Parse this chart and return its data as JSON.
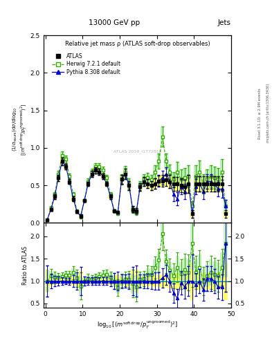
{
  "title_top": "13000 GeV pp",
  "title_right": "Jets",
  "plot_title": "Relative jet mass ρ (ATLAS soft-drop observables)",
  "ylabel_main": "(1/σ_resum) dσ/d log₁₀[(m^{soft drop}/p_T^{ungroomed})^2]",
  "ylabel_ratio": "Ratio to ATLAS",
  "xlabel": "log₁₀[(m^{soft drop}/p_T^{ungroomed})^2]",
  "right_label": "Rivet 3.1.10; ≥ 2.9M events",
  "right_label2": "mcplots.cern.ch [arXiv:1306.3436]",
  "ylim_main": [
    0.0,
    2.5
  ],
  "ylim_ratio": [
    0.4,
    2.3
  ],
  "yticks_ratio": [
    0.5,
    1.0,
    1.5,
    2.0
  ],
  "xlim": [
    -0.5,
    50
  ],
  "watermark": "ATLAS 2019_I1772819",
  "x": [
    0.5,
    1.5,
    2.5,
    3.5,
    4.5,
    5.5,
    6.5,
    7.5,
    8.5,
    9.5,
    10.5,
    11.5,
    12.5,
    13.5,
    14.5,
    15.5,
    16.5,
    17.5,
    18.5,
    19.5,
    20.5,
    21.5,
    22.5,
    23.5,
    24.5,
    25.5,
    26.5,
    27.5,
    28.5,
    29.5,
    30.5,
    31.5,
    32.5,
    33.5,
    34.5,
    35.5,
    36.5,
    37.5,
    38.5,
    39.5,
    40.5,
    41.5,
    42.5,
    43.5,
    44.5,
    45.5,
    46.5,
    47.5,
    48.5
  ],
  "atlas_y": [
    0.04,
    0.18,
    0.35,
    0.6,
    0.82,
    0.75,
    0.55,
    0.32,
    0.15,
    0.09,
    0.3,
    0.52,
    0.65,
    0.7,
    0.68,
    0.62,
    0.52,
    0.35,
    0.16,
    0.14,
    0.58,
    0.65,
    0.5,
    0.18,
    0.16,
    0.48,
    0.55,
    0.52,
    0.5,
    0.52,
    0.56,
    0.56,
    0.57,
    0.55,
    0.52,
    0.52,
    0.5,
    0.48,
    0.52,
    0.12,
    0.52,
    0.52,
    0.52,
    0.52,
    0.52,
    0.52,
    0.52,
    0.52,
    0.12
  ],
  "atlas_yerr": [
    0.01,
    0.02,
    0.03,
    0.04,
    0.05,
    0.04,
    0.03,
    0.03,
    0.02,
    0.02,
    0.02,
    0.03,
    0.04,
    0.04,
    0.04,
    0.04,
    0.03,
    0.03,
    0.02,
    0.02,
    0.06,
    0.07,
    0.06,
    0.04,
    0.04,
    0.05,
    0.06,
    0.06,
    0.06,
    0.07,
    0.07,
    0.08,
    0.08,
    0.09,
    0.09,
    0.09,
    0.09,
    0.09,
    0.12,
    0.05,
    0.1,
    0.1,
    0.1,
    0.1,
    0.1,
    0.1,
    0.1,
    0.1,
    0.05
  ],
  "herwig_y": [
    0.04,
    0.2,
    0.38,
    0.65,
    0.9,
    0.85,
    0.62,
    0.38,
    0.16,
    0.08,
    0.3,
    0.55,
    0.68,
    0.75,
    0.75,
    0.7,
    0.6,
    0.38,
    0.16,
    0.12,
    0.58,
    0.68,
    0.52,
    0.17,
    0.14,
    0.5,
    0.58,
    0.6,
    0.57,
    0.68,
    0.82,
    1.15,
    0.82,
    0.68,
    0.58,
    0.68,
    0.58,
    0.6,
    0.62,
    0.22,
    0.62,
    0.68,
    0.52,
    0.58,
    0.62,
    0.6,
    0.58,
    0.68,
    0.22
  ],
  "herwig_yerr": [
    0.01,
    0.02,
    0.03,
    0.04,
    0.05,
    0.05,
    0.04,
    0.03,
    0.02,
    0.02,
    0.02,
    0.04,
    0.04,
    0.05,
    0.05,
    0.05,
    0.04,
    0.03,
    0.02,
    0.02,
    0.07,
    0.08,
    0.07,
    0.04,
    0.04,
    0.06,
    0.07,
    0.07,
    0.07,
    0.09,
    0.1,
    0.13,
    0.1,
    0.1,
    0.1,
    0.13,
    0.13,
    0.13,
    0.15,
    0.07,
    0.15,
    0.15,
    0.13,
    0.13,
    0.15,
    0.15,
    0.15,
    0.17,
    0.09
  ],
  "pythia_y": [
    0.04,
    0.18,
    0.35,
    0.6,
    0.82,
    0.75,
    0.55,
    0.32,
    0.15,
    0.09,
    0.3,
    0.52,
    0.65,
    0.7,
    0.68,
    0.62,
    0.52,
    0.35,
    0.16,
    0.14,
    0.58,
    0.65,
    0.5,
    0.18,
    0.16,
    0.48,
    0.55,
    0.52,
    0.5,
    0.52,
    0.56,
    0.6,
    0.65,
    0.55,
    0.38,
    0.32,
    0.48,
    0.42,
    0.52,
    0.12,
    0.48,
    0.52,
    0.42,
    0.55,
    0.55,
    0.52,
    0.45,
    0.45,
    0.22
  ],
  "pythia_yerr": [
    0.01,
    0.02,
    0.03,
    0.04,
    0.05,
    0.04,
    0.03,
    0.03,
    0.02,
    0.02,
    0.02,
    0.03,
    0.04,
    0.04,
    0.04,
    0.04,
    0.03,
    0.03,
    0.02,
    0.02,
    0.06,
    0.07,
    0.06,
    0.04,
    0.04,
    0.05,
    0.06,
    0.06,
    0.06,
    0.07,
    0.08,
    0.09,
    0.09,
    0.09,
    0.09,
    0.09,
    0.1,
    0.1,
    0.12,
    0.05,
    0.1,
    0.1,
    0.1,
    0.1,
    0.1,
    0.1,
    0.1,
    0.12,
    0.09
  ],
  "atlas_color": "#000000",
  "herwig_color": "#33aa00",
  "pythia_color": "#0000cc",
  "atlas_band_color": "#ffff66",
  "herwig_band_color": "#88dd88"
}
